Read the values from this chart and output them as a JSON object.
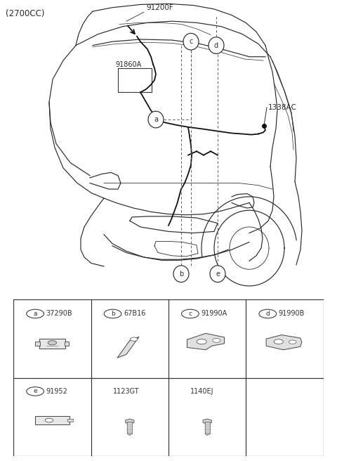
{
  "title": "(2700CC)",
  "bg_color": "#ffffff",
  "lc": "#2a2a2a",
  "fig_width": 4.8,
  "fig_height": 6.56,
  "dpi": 100,
  "table": {
    "row1": [
      {
        "label": "a",
        "code": "37290B",
        "col": 0
      },
      {
        "label": "b",
        "code": "67B16",
        "col": 1
      },
      {
        "label": "c",
        "code": "91990A",
        "col": 2
      },
      {
        "label": "d",
        "code": "91990B",
        "col": 3
      }
    ],
    "row2": [
      {
        "label": "e",
        "code": "91952",
        "col": 0,
        "has_circle": true
      },
      {
        "label": "",
        "code": "1123GT",
        "col": 1,
        "has_circle": false
      },
      {
        "label": "",
        "code": "1140EJ",
        "col": 2,
        "has_circle": false
      }
    ]
  }
}
